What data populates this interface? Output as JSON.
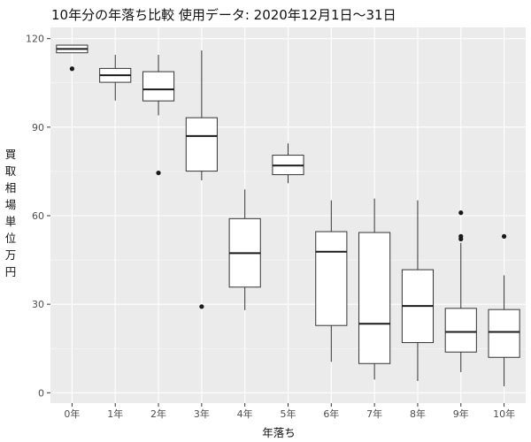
{
  "chart_data": {
    "type": "boxplot",
    "title": "10年分の年落ち比較 使用データ: 2020年12月1日～31日",
    "xlabel": "年落ち",
    "ylabel": "買取相場 単位 万円",
    "categories": [
      "0年",
      "1年",
      "2年",
      "3年",
      "4年",
      "5年",
      "6年",
      "7年",
      "8年",
      "9年",
      "10年"
    ],
    "yticks": [
      0,
      30,
      60,
      90,
      120
    ],
    "ylim": [
      -3.5,
      123.8
    ],
    "grid": true,
    "boxes": [
      {
        "category": "0年",
        "whisker_low": 115.2,
        "q1": 115.2,
        "median": 116.5,
        "q3": 117.8,
        "whisker_high": 117.8,
        "outliers": [
          109.8
        ]
      },
      {
        "category": "1年",
        "whisker_low": 99.0,
        "q1": 105.2,
        "median": 107.6,
        "q3": 109.9,
        "whisker_high": 114.5,
        "outliers": []
      },
      {
        "category": "2年",
        "whisker_low": 94.0,
        "q1": 98.9,
        "median": 102.8,
        "q3": 108.8,
        "whisker_high": 114.5,
        "outliers": [
          74.5
        ]
      },
      {
        "category": "3年",
        "whisker_low": 72.0,
        "q1": 75.1,
        "median": 87.0,
        "q3": 93.2,
        "whisker_high": 116.0,
        "outliers": [
          29.2
        ]
      },
      {
        "category": "4年",
        "whisker_low": 28.0,
        "q1": 35.8,
        "median": 47.3,
        "q3": 59.0,
        "whisker_high": 68.9,
        "outliers": []
      },
      {
        "category": "5年",
        "whisker_low": 71.0,
        "q1": 73.9,
        "median": 77.0,
        "q3": 80.5,
        "whisker_high": 84.5,
        "outliers": []
      },
      {
        "category": "6年",
        "whisker_low": 10.5,
        "q1": 22.8,
        "median": 47.8,
        "q3": 54.6,
        "whisker_high": 65.2,
        "outliers": []
      },
      {
        "category": "7年",
        "whisker_low": 4.5,
        "q1": 9.9,
        "median": 23.4,
        "q3": 54.3,
        "whisker_high": 65.8,
        "outliers": []
      },
      {
        "category": "8年",
        "whisker_low": 4.0,
        "q1": 17.0,
        "median": 29.4,
        "q3": 41.7,
        "whisker_high": 65.2,
        "outliers": []
      },
      {
        "category": "9年",
        "whisker_low": 7.0,
        "q1": 13.8,
        "median": 20.6,
        "q3": 28.6,
        "whisker_high": 50.8,
        "outliers": [
          52.1,
          53.0,
          61.0
        ]
      },
      {
        "category": "10年",
        "whisker_low": 2.2,
        "q1": 12.0,
        "median": 20.6,
        "q3": 28.2,
        "whisker_high": 39.8,
        "outliers": [
          53.0
        ]
      }
    ]
  },
  "colors": {
    "panel": "#ebebeb",
    "grid_major": "#ffffff",
    "box_fill": "#ffffff",
    "box_line": "#333333"
  }
}
